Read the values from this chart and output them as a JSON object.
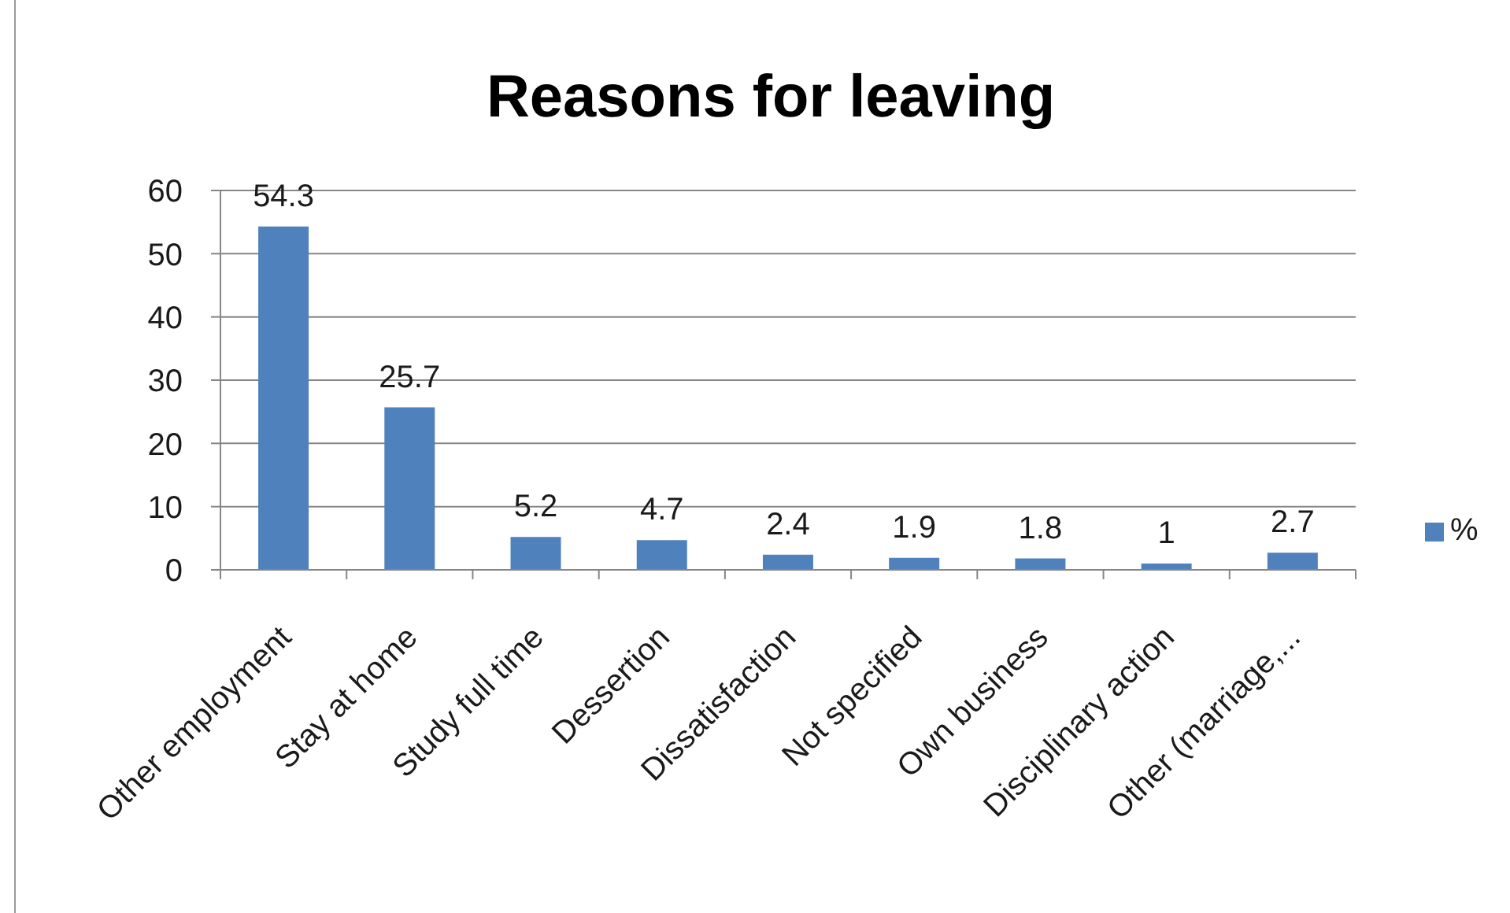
{
  "chart_data": {
    "type": "bar",
    "title": "Reasons for leaving",
    "categories": [
      "Other employment",
      "Stay at home",
      "Study full time",
      "Dessertion",
      "Dissatisfaction",
      "Not specified",
      "Own business",
      "Disciplinary action",
      "Other (marriage,..."
    ],
    "series": [
      {
        "name": "%",
        "color": "#4f81bd",
        "values": [
          54.3,
          25.7,
          5.2,
          4.7,
          2.4,
          1.9,
          1.8,
          1,
          2.7
        ]
      }
    ],
    "ylim": [
      0,
      60
    ],
    "yticks": [
      0,
      10,
      20,
      30,
      40,
      50,
      60
    ],
    "grid": "y",
    "legend": "right",
    "data_labels": true
  }
}
